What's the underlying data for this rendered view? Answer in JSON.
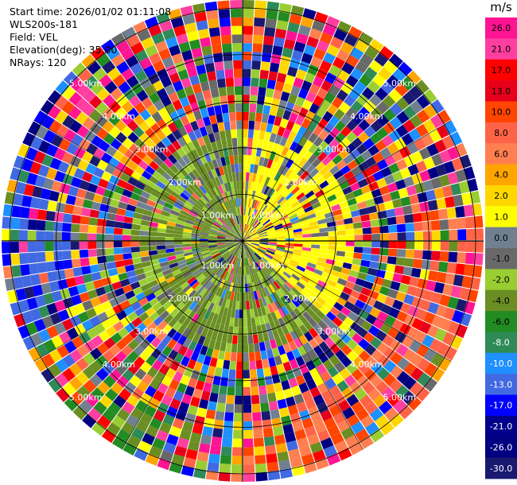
{
  "info": {
    "start_time": "Start time: 2026/01/02 01:11:08",
    "station": "WLS200s-181",
    "field": "Field: VEL",
    "elevation": "Elevation(deg): 35.00",
    "nrays": "NRays: 120"
  },
  "chart_data": {
    "type": "heatmap",
    "title": "",
    "projection": "polar (PPI scan)",
    "field": "VEL",
    "nrays": 120,
    "elevation_deg": 35.0,
    "unit": "m/s",
    "range_rings_km": [
      1.0,
      2.0,
      3.0,
      4.0,
      5.0
    ],
    "range_ring_labels": [
      "1.00km",
      "2.00km",
      "3.00km",
      "4.00km",
      "5.00km"
    ],
    "colorbar": {
      "label": "m/s",
      "ticks": [
        "26.0",
        "21.0",
        "17.0",
        "13.0",
        "10.0",
        "8.0",
        "6.0",
        "4.0",
        "2.0",
        "1.0",
        "0.0",
        "-1.0",
        "-2.0",
        "-4.0",
        "-6.0",
        "-8.0",
        "-10.0",
        "-13.0",
        "-17.0",
        "-21.0",
        "-26.0",
        "-30.0"
      ],
      "colors": [
        "#ff1493",
        "#ff3fa0",
        "#ff0000",
        "#e8001a",
        "#ff4500",
        "#ff6347",
        "#ff7f50",
        "#ffa500",
        "#ffd700",
        "#ffff00",
        "#708090",
        "#696969",
        "#9acd32",
        "#6b8e23",
        "#228b22",
        "#2e8b57",
        "#1e90ff",
        "#4169e1",
        "#0000ff",
        "#00008b",
        "#000080",
        "#191970"
      ]
    },
    "grid": true
  }
}
